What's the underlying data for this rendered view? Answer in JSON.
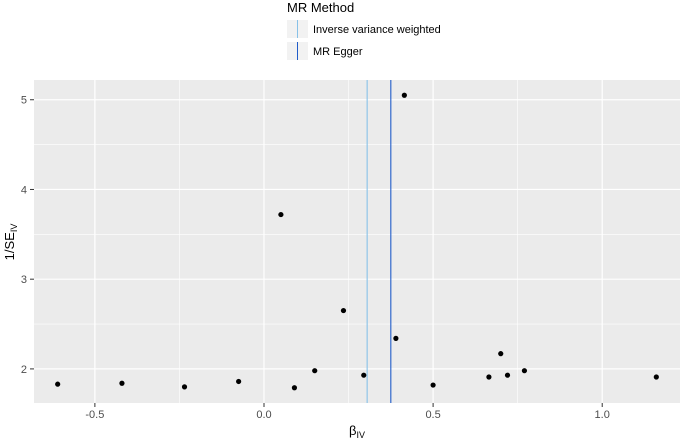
{
  "chart_data": {
    "type": "scatter",
    "title": "",
    "xlabel": {
      "main": "β",
      "sub": "IV"
    },
    "ylabel": {
      "main": "1/SE",
      "sub": "IV"
    },
    "xlim": [
      -0.68,
      1.23
    ],
    "ylim": [
      1.62,
      5.22
    ],
    "x_ticks": [
      -0.5,
      0.0,
      0.5,
      1.0
    ],
    "x_tick_labels": [
      "-0.5",
      "0.0",
      "0.5",
      "1.0"
    ],
    "y_ticks": [
      2,
      3,
      4,
      5
    ],
    "y_tick_labels": [
      "2",
      "3",
      "4",
      "5"
    ],
    "grid": true,
    "points": [
      {
        "x": -0.61,
        "y": 1.83
      },
      {
        "x": -0.42,
        "y": 1.84
      },
      {
        "x": -0.235,
        "y": 1.8
      },
      {
        "x": -0.075,
        "y": 1.86
      },
      {
        "x": 0.05,
        "y": 3.72
      },
      {
        "x": 0.09,
        "y": 1.79
      },
      {
        "x": 0.15,
        "y": 1.98
      },
      {
        "x": 0.235,
        "y": 2.65
      },
      {
        "x": 0.295,
        "y": 1.93
      },
      {
        "x": 0.39,
        "y": 2.34
      },
      {
        "x": 0.415,
        "y": 5.05
      },
      {
        "x": 0.5,
        "y": 1.82
      },
      {
        "x": 0.665,
        "y": 1.91
      },
      {
        "x": 0.7,
        "y": 2.17
      },
      {
        "x": 0.72,
        "y": 1.93
      },
      {
        "x": 0.77,
        "y": 1.98
      },
      {
        "x": 1.16,
        "y": 1.91
      }
    ],
    "reference_lines": [
      {
        "name": "Inverse variance weighted",
        "x": 0.305,
        "color": "#87c1e8"
      },
      {
        "name": "MR Egger",
        "x": 0.375,
        "color": "#1f5cc9"
      }
    ],
    "legend": {
      "title": "MR Method",
      "position": "top",
      "entries": [
        "Inverse variance weighted",
        "MR Egger"
      ]
    },
    "colors": {
      "panel": "#ebebeb",
      "grid": "#ffffff",
      "point": "#000000"
    }
  }
}
